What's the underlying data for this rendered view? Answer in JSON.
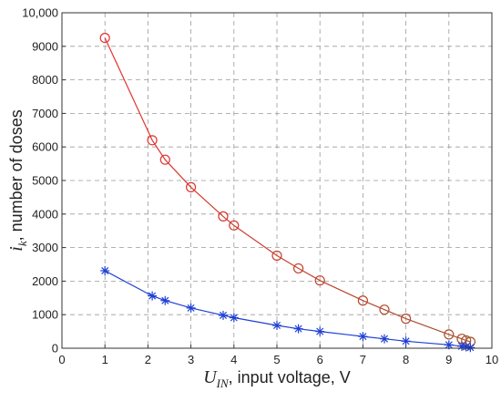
{
  "chart_data": {
    "type": "line",
    "xlabel_symbol": "U",
    "xlabel_sub": "IN",
    "xlabel_text": ", input voltage, V",
    "ylabel_symbol": "i",
    "ylabel_sub": "k",
    "ylabel_text": ", number of doses",
    "xlim": [
      0,
      10
    ],
    "ylim": [
      0,
      10000
    ],
    "x_ticks": [
      "0",
      "1",
      "2",
      "3",
      "4",
      "5",
      "6",
      "7",
      "8",
      "9",
      "10"
    ],
    "y_ticks": [
      "0",
      "1000",
      "2000",
      "3000",
      "4000",
      "5000",
      "6000",
      "7000",
      "8000",
      "9000",
      "10,000"
    ],
    "grid": true,
    "series": [
      {
        "color": "#e8312f",
        "color_end": "#a0522d",
        "marker": "circle",
        "x": [
          1,
          2.1,
          2.4,
          3,
          3.75,
          4,
          5,
          5.5,
          6,
          7,
          7.5,
          8,
          9,
          9.3,
          9.4,
          9.5
        ],
        "y": [
          9250,
          6200,
          5620,
          4800,
          3930,
          3660,
          2760,
          2380,
          2020,
          1420,
          1150,
          880,
          410,
          280,
          230,
          190
        ]
      },
      {
        "color": "#1f3fd6",
        "marker": "star",
        "x": [
          1,
          2.1,
          2.4,
          3,
          3.75,
          4,
          5,
          5.5,
          6,
          7,
          7.5,
          8,
          9,
          9.3,
          9.4,
          9.5
        ],
        "y": [
          2310,
          1560,
          1420,
          1200,
          980,
          910,
          680,
          580,
          500,
          350,
          280,
          210,
          100,
          60,
          40,
          20
        ]
      }
    ]
  }
}
